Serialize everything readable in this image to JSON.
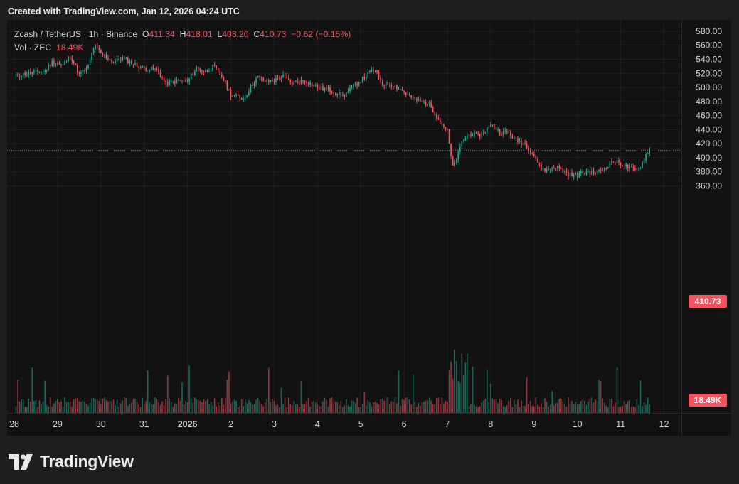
{
  "header": {
    "created_with": "Created with TradingView.com,",
    "timestamp": "Jan 12, 2026 04:24 UTC"
  },
  "legend": {
    "symbol": "Zcash / TetherUS · 1h · Binance",
    "o_label": "O",
    "o": "411.34",
    "h_label": "H",
    "h": "418.01",
    "l_label": "L",
    "l": "403.20",
    "c_label": "C",
    "c": "410.73",
    "change": "−0.62 (−0.15%)",
    "vol_label": "Vol · ZEC",
    "vol": "18.49K"
  },
  "price_tag": "410.73",
  "volume_tag": "18.49K",
  "brand": "TradingView",
  "colors": {
    "up": "#22ab94",
    "down": "#f7525f",
    "background": "#121212",
    "grid": "#1f1f1f",
    "text": "#d1d4dc"
  },
  "chart_data": {
    "type": "candlestick",
    "symbol": "ZECUSDT",
    "interval": "1h",
    "y_axis": {
      "range": [
        345,
        584
      ],
      "ticks": [
        "580.00",
        "560.00",
        "540.00",
        "520.00",
        "500.00",
        "480.00",
        "460.00",
        "440.00",
        "420.00",
        "400.00",
        "380.00",
        "360.00"
      ]
    },
    "x_axis": {
      "ticks": [
        "28",
        "29",
        "30",
        "31",
        "2026",
        "2",
        "3",
        "4",
        "5",
        "6",
        "7",
        "8",
        "9",
        "10",
        "11",
        "12"
      ]
    },
    "last_price": 410.73,
    "last_volume": "18.49K",
    "series": [
      {
        "name": "Zcash / TetherUS",
        "close_path": [
          {
            "day": 0.0,
            "close": 516
          },
          {
            "day": 0.4,
            "close": 521
          },
          {
            "day": 0.7,
            "close": 523
          },
          {
            "day": 0.9,
            "close": 538
          },
          {
            "day": 1.1,
            "close": 530
          },
          {
            "day": 1.3,
            "close": 545
          },
          {
            "day": 1.5,
            "close": 518
          },
          {
            "day": 1.7,
            "close": 528
          },
          {
            "day": 1.85,
            "close": 560
          },
          {
            "day": 2.0,
            "close": 548
          },
          {
            "day": 2.3,
            "close": 536
          },
          {
            "day": 2.5,
            "close": 542
          },
          {
            "day": 2.8,
            "close": 532
          },
          {
            "day": 3.0,
            "close": 527
          },
          {
            "day": 3.3,
            "close": 525
          },
          {
            "day": 3.5,
            "close": 505
          },
          {
            "day": 3.8,
            "close": 510
          },
          {
            "day": 4.0,
            "close": 508
          },
          {
            "day": 4.2,
            "close": 528
          },
          {
            "day": 4.4,
            "close": 522
          },
          {
            "day": 4.6,
            "close": 530
          },
          {
            "day": 4.8,
            "close": 515
          },
          {
            "day": 5.0,
            "close": 490
          },
          {
            "day": 5.3,
            "close": 484
          },
          {
            "day": 5.6,
            "close": 515
          },
          {
            "day": 5.8,
            "close": 508
          },
          {
            "day": 6.0,
            "close": 510
          },
          {
            "day": 6.2,
            "close": 516
          },
          {
            "day": 6.4,
            "close": 506
          },
          {
            "day": 6.7,
            "close": 510
          },
          {
            "day": 7.0,
            "close": 500
          },
          {
            "day": 7.3,
            "close": 496
          },
          {
            "day": 7.6,
            "close": 488
          },
          {
            "day": 7.9,
            "close": 505
          },
          {
            "day": 8.1,
            "close": 515
          },
          {
            "day": 8.3,
            "close": 526
          },
          {
            "day": 8.5,
            "close": 505
          },
          {
            "day": 8.7,
            "close": 505
          },
          {
            "day": 8.9,
            "close": 498
          },
          {
            "day": 9.2,
            "close": 484
          },
          {
            "day": 9.4,
            "close": 480
          },
          {
            "day": 9.6,
            "close": 475
          },
          {
            "day": 9.8,
            "close": 455
          },
          {
            "day": 10.0,
            "close": 438
          },
          {
            "day": 10.12,
            "close": 385
          },
          {
            "day": 10.25,
            "close": 405
          },
          {
            "day": 10.35,
            "close": 425
          },
          {
            "day": 10.55,
            "close": 435
          },
          {
            "day": 10.7,
            "close": 430
          },
          {
            "day": 10.9,
            "close": 440
          },
          {
            "day": 11.05,
            "close": 448
          },
          {
            "day": 11.2,
            "close": 436
          },
          {
            "day": 11.4,
            "close": 436
          },
          {
            "day": 11.6,
            "close": 424
          },
          {
            "day": 11.8,
            "close": 420
          },
          {
            "day": 12.0,
            "close": 404
          },
          {
            "day": 12.15,
            "close": 385
          },
          {
            "day": 12.3,
            "close": 382
          },
          {
            "day": 12.5,
            "close": 388
          },
          {
            "day": 12.7,
            "close": 380
          },
          {
            "day": 12.9,
            "close": 374
          },
          {
            "day": 13.2,
            "close": 380
          },
          {
            "day": 13.4,
            "close": 378
          },
          {
            "day": 13.6,
            "close": 384
          },
          {
            "day": 13.8,
            "close": 395
          },
          {
            "day": 14.0,
            "close": 392
          },
          {
            "day": 14.2,
            "close": 385
          },
          {
            "day": 14.35,
            "close": 381
          },
          {
            "day": 14.5,
            "close": 392
          },
          {
            "day": 14.6,
            "close": 408
          },
          {
            "day": 14.65,
            "close": 411
          }
        ]
      }
    ]
  }
}
